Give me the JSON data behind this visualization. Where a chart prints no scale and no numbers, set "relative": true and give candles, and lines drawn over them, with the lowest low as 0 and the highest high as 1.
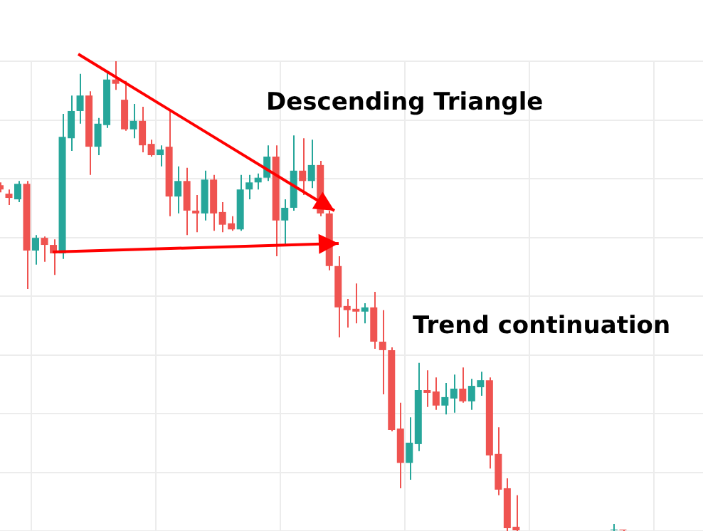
{
  "chart_data": {
    "type": "candlestick",
    "relative": true,
    "grid": true,
    "legend": false,
    "categories": [
      null,
      null,
      null,
      null,
      null,
      null,
      null,
      null,
      null,
      null,
      null,
      null,
      null,
      null,
      null,
      null,
      null,
      null,
      null,
      null,
      null,
      null,
      null,
      null,
      null,
      null,
      null,
      null,
      null,
      null,
      null,
      null,
      null,
      null,
      null,
      null,
      null,
      null,
      null,
      null,
      null,
      null,
      null,
      null,
      null,
      null,
      null,
      null,
      null,
      null,
      null,
      null,
      null,
      null,
      null,
      null,
      null,
      null,
      null,
      null,
      null,
      null,
      null,
      null,
      null,
      null,
      null,
      null,
      null,
      null,
      null,
      null,
      null,
      null,
      null,
      null,
      null,
      null,
      null,
      null
    ],
    "ohlc": [
      [
        0.736,
        0.742,
        0.721,
        0.727
      ],
      [
        0.718,
        0.727,
        0.694,
        0.709
      ],
      [
        0.706,
        0.745,
        0.7,
        0.739
      ],
      [
        0.739,
        0.745,
        0.515,
        0.597
      ],
      [
        0.597,
        0.63,
        0.567,
        0.624
      ],
      [
        0.624,
        0.627,
        0.573,
        0.609
      ],
      [
        0.609,
        0.621,
        0.545,
        0.591
      ],
      [
        0.591,
        0.888,
        0.579,
        0.839
      ],
      [
        0.836,
        0.927,
        0.809,
        0.894
      ],
      [
        0.894,
        0.973,
        0.867,
        0.927
      ],
      [
        0.927,
        0.936,
        0.758,
        0.818
      ],
      [
        0.818,
        0.879,
        0.8,
        0.867
      ],
      [
        0.864,
        0.979,
        0.858,
        0.961
      ],
      [
        0.961,
        1,
        0.939,
        0.952
      ],
      [
        0.918,
        0.958,
        0.852,
        0.855
      ],
      [
        0.855,
        0.909,
        0.836,
        0.873
      ],
      [
        0.873,
        0.903,
        0.806,
        0.821
      ],
      [
        0.824,
        0.833,
        0.797,
        0.8
      ],
      [
        0.8,
        0.821,
        0.776,
        0.812
      ],
      [
        0.818,
        0.894,
        0.67,
        0.712
      ],
      [
        0.712,
        0.776,
        0.676,
        0.745
      ],
      [
        0.745,
        0.773,
        0.63,
        0.682
      ],
      [
        0.682,
        0.715,
        0.636,
        0.676
      ],
      [
        0.676,
        0.767,
        0.661,
        0.748
      ],
      [
        0.748,
        0.758,
        0.639,
        0.676
      ],
      [
        0.679,
        0.7,
        0.636,
        0.652
      ],
      [
        0.655,
        0.67,
        0.639,
        0.642
      ],
      [
        0.642,
        0.758,
        0.639,
        0.727
      ],
      [
        0.727,
        0.758,
        0.706,
        0.742
      ],
      [
        0.742,
        0.761,
        0.727,
        0.752
      ],
      [
        0.752,
        0.821,
        0.745,
        0.797
      ],
      [
        0.797,
        0.821,
        0.585,
        0.661
      ],
      [
        0.661,
        0.706,
        0.606,
        0.688
      ],
      [
        0.688,
        0.842,
        0.682,
        0.767
      ],
      [
        0.767,
        0.836,
        0.715,
        0.745
      ],
      [
        0.745,
        0.833,
        0.73,
        0.779
      ],
      [
        0.779,
        0.788,
        0.67,
        0.676
      ],
      [
        0.676,
        0.682,
        0.555,
        0.564
      ],
      [
        0.564,
        0.585,
        0.412,
        0.476
      ],
      [
        0.479,
        0.494,
        0.433,
        0.47
      ],
      [
        0.473,
        0.527,
        0.442,
        0.467
      ],
      [
        0.467,
        0.485,
        0.442,
        0.476
      ],
      [
        0.476,
        0.509,
        0.388,
        0.403
      ],
      [
        0.403,
        0.47,
        0.291,
        0.385
      ],
      [
        0.385,
        0.391,
        0.212,
        0.215
      ],
      [
        0.218,
        0.273,
        0.091,
        0.145
      ],
      [
        0.145,
        0.242,
        0.109,
        0.188
      ],
      [
        0.185,
        0.358,
        0.17,
        0.3
      ],
      [
        0.3,
        0.342,
        0.264,
        0.294
      ],
      [
        0.297,
        0.327,
        0.258,
        0.267
      ],
      [
        0.267,
        0.315,
        0.248,
        0.285
      ],
      [
        0.282,
        0.333,
        0.252,
        0.303
      ],
      [
        0.303,
        0.348,
        0.273,
        0.276
      ],
      [
        0.276,
        0.324,
        0.258,
        0.309
      ],
      [
        0.306,
        0.339,
        0.288,
        0.321
      ],
      [
        0.321,
        0.327,
        0.133,
        0.161
      ],
      [
        0.164,
        0.221,
        0.076,
        0.088
      ],
      [
        0.091,
        0.112,
        0,
        0.006
      ],
      [
        0.009,
        0.076,
        0,
        0
      ],
      null,
      null,
      null,
      null,
      null,
      null,
      null,
      null,
      null,
      null,
      [
        0,
        0.015,
        0,
        0
      ],
      [
        0,
        0.003,
        0,
        0
      ],
      null,
      null,
      null,
      null,
      null,
      null,
      null,
      null,
      null
    ],
    "colors": [
      "#ef5350",
      "#ef5350",
      "#26a69a",
      "#ef5350",
      "#26a69a",
      "#ef5350",
      "#ef5350",
      "#26a69a",
      "#26a69a",
      "#26a69a",
      "#ef5350",
      "#26a69a",
      "#26a69a",
      "#ef5350",
      "#ef5350",
      "#26a69a",
      "#ef5350",
      "#ef5350",
      "#26a69a",
      "#ef5350",
      "#26a69a",
      "#ef5350",
      "#ef5350",
      "#26a69a",
      "#ef5350",
      "#ef5350",
      "#ef5350",
      "#26a69a",
      "#26a69a",
      "#26a69a",
      "#26a69a",
      "#ef5350",
      "#26a69a",
      "#26a69a",
      "#ef5350",
      "#26a69a",
      "#ef5350",
      "#ef5350",
      "#ef5350",
      "#ef5350",
      "#ef5350",
      "#26a69a",
      "#ef5350",
      "#ef5350",
      "#ef5350",
      "#ef5350",
      "#26a69a",
      "#26a69a",
      "#ef5350",
      "#ef5350",
      "#26a69a",
      "#26a69a",
      "#ef5350",
      "#26a69a",
      "#26a69a",
      "#ef5350",
      "#ef5350",
      "#ef5350",
      "#ef5350",
      null,
      null,
      null,
      null,
      null,
      null,
      null,
      null,
      null,
      null,
      "#26a69a",
      "#ef5350",
      null,
      null,
      null,
      null,
      null,
      null,
      null,
      null,
      null
    ],
    "annotations": [
      "Descending Triangle",
      "Trend continuation"
    ]
  }
}
